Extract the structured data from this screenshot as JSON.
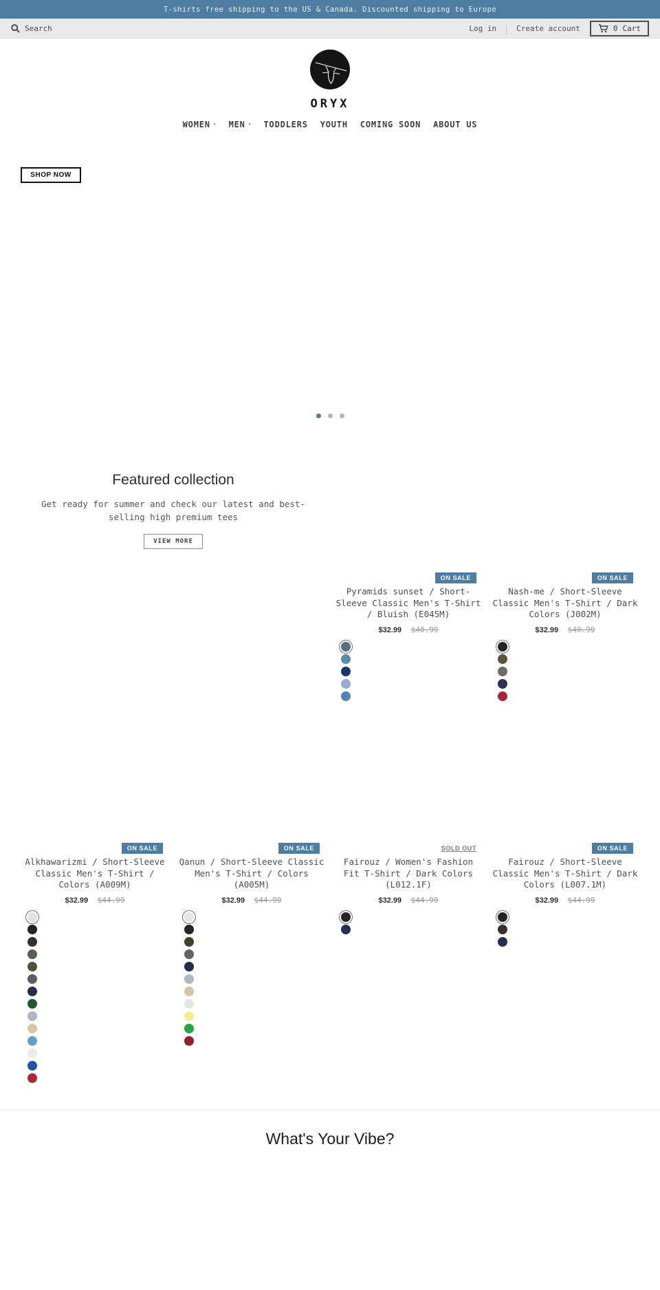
{
  "announcement": {
    "text": "T-shirts free shipping to the US & Canada. Discounted shipping to Europe"
  },
  "header": {
    "search_label": "Search",
    "login_label": "Log in",
    "create_account_label": "Create account",
    "cart_count": "0",
    "cart_label": "Cart"
  },
  "brand": {
    "name": "ORYX"
  },
  "nav": {
    "items": [
      {
        "label": "WOMEN",
        "dropdown": true
      },
      {
        "label": "MEN",
        "dropdown": true
      },
      {
        "label": "TODDLERS",
        "dropdown": false
      },
      {
        "label": "YOUTH",
        "dropdown": false
      },
      {
        "label": "COMING SOON",
        "dropdown": false
      },
      {
        "label": "ABOUT US",
        "dropdown": false
      }
    ]
  },
  "hero": {
    "shop_now_label": "SHOP NOW",
    "slide_count": 3,
    "active_slide": 1
  },
  "featured": {
    "title": "Featured collection",
    "subtitle": "Get ready for summer and check our latest and best-selling high premium tees",
    "view_more_label": "VIEW MORE"
  },
  "products": [
    {
      "title": "Pyramids sunset / Short-Sleeve Classic Men's T-Shirt / Bluish (E045M)",
      "badge_label": "ON SALE",
      "badge_class": "badge badge-sale",
      "price": "$32.99",
      "compare_price": "$40.99",
      "selected_index": 0,
      "swatches": [
        "#52707f",
        "#5d89a8",
        "#17376b",
        "#93aed4",
        "#4e86b8"
      ]
    },
    {
      "title": "Nash-me / Short-Sleeve Classic Men's T-Shirt / Dark Colors (J002M)",
      "badge_label": "ON SALE",
      "badge_class": "badge badge-sale",
      "price": "$32.99",
      "compare_price": "$40.99",
      "selected_index": 0,
      "swatches": [
        "#26242a",
        "#5d5539",
        "#6e6a66",
        "#293252",
        "#a42836"
      ]
    },
    {
      "title": "Alkhawarizmi / Short-Sleeve Classic Men's T-Shirt / Colors (A009M)",
      "badge_label": "ON SALE",
      "badge_class": "badge badge-sale",
      "price": "$32.99",
      "compare_price": "$44.99",
      "selected_index": 0,
      "swatches": [
        "#e3e3e1",
        "#232129",
        "#3b2e2e",
        "#56614f",
        "#564f39",
        "#5c6066",
        "#272e4b",
        "#1d5a2e",
        "#adb5c5",
        "#d8c7a5",
        "#649dc5",
        "#ebebe9",
        "#1d56a8",
        "#ad2737"
      ]
    },
    {
      "title": "Qanun / Short-Sleeve Classic Men's T-Shirt / Colors (A005M)",
      "badge_label": "ON SALE",
      "badge_class": "badge badge-sale",
      "price": "$32.99",
      "compare_price": "$44.99",
      "selected_index": 0,
      "swatches": [
        "#e6e6e4",
        "#232129",
        "#473e2d",
        "#636363",
        "#232c4e",
        "#b1b7be",
        "#d4c5a6",
        "#e5e5e1",
        "#f3ee8a",
        "#27a742",
        "#8e2130"
      ]
    },
    {
      "title": "Fairouz / Women's Fashion Fit T-Shirt / Dark Colors (L012.1F)",
      "badge_label": "SOLD OUT",
      "badge_class": "badge badge-soldout",
      "price": "$32.99",
      "compare_price": "$44.99",
      "selected_index": 0,
      "swatches": [
        "#26242a",
        "#252e52"
      ]
    },
    {
      "title": "Fairouz / Short-Sleeve Classic Men's T-Shirt / Dark Colors (L007.1M)",
      "badge_label": "ON SALE",
      "badge_class": "badge badge-sale",
      "price": "$32.99",
      "compare_price": "$44.99",
      "selected_index": 0,
      "swatches": [
        "#26242a",
        "#3b2f2b",
        "#252e52"
      ]
    }
  ],
  "vibe": {
    "title": "What's Your Vibe?"
  },
  "colors": {
    "accent": "#4e7da2",
    "badge_sale_bg": "#4e7da2",
    "soldout_text": "#5d7f9d",
    "active_dot": "#4e7da2",
    "inactive_dot": "#b5b5b5"
  }
}
